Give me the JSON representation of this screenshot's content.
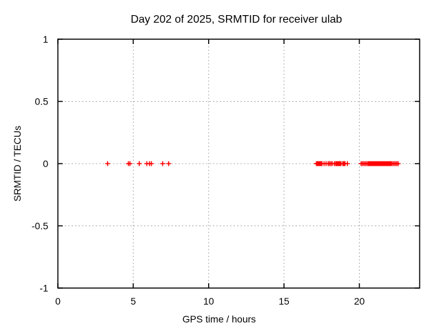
{
  "window": {
    "background": "#ffffff"
  },
  "chart_data": {
    "type": "scatter",
    "title": "Day 202 of 2025, SRMTID for receiver ulab",
    "xlabel": "GPS time / hours",
    "ylabel": "SRMTID / TECUs",
    "xlim": [
      0,
      24
    ],
    "ylim": [
      -1,
      1
    ],
    "xticks": [
      0,
      5,
      10,
      15,
      20
    ],
    "xtick_labels": [
      "0",
      "5",
      "10",
      "15",
      "20"
    ],
    "yticks": [
      1,
      0.5,
      0,
      -0.5,
      -1
    ],
    "ytick_labels": [
      "1",
      "0.5",
      "0",
      "-0.5",
      "-1"
    ],
    "grid": true,
    "legend": "none",
    "marker": "plus",
    "marker_size": 7,
    "colors": {
      "marker": "#ff0000",
      "grid": "#b0b0b0",
      "axis": "#000000",
      "text": "#000000",
      "background": "#ffffff"
    },
    "series": [
      {
        "name": "SRMTID",
        "y_const": 0,
        "x": [
          3.3,
          4.68,
          4.78,
          5.4,
          5.9,
          6.08,
          6.2,
          6.95,
          7.35,
          17.15,
          17.2,
          17.25,
          17.3,
          17.35,
          17.4,
          17.45,
          17.52,
          17.66,
          17.79,
          17.93,
          18.02,
          18.11,
          18.2,
          18.34,
          18.43,
          18.48,
          18.53,
          18.58,
          18.63,
          18.68,
          18.73,
          18.78,
          18.9,
          18.95,
          19.0,
          19.05,
          19.21,
          20.12,
          20.21,
          20.3,
          20.39,
          20.48,
          20.57,
          20.62,
          20.67,
          20.72,
          20.77,
          20.82,
          20.87,
          20.92,
          20.97,
          21.02,
          21.07,
          21.12,
          21.17,
          21.22,
          21.27,
          21.32,
          21.37,
          21.42,
          21.47,
          21.52,
          21.57,
          21.62,
          21.67,
          21.72,
          21.77,
          21.82,
          21.87,
          21.92,
          21.97,
          22.02,
          22.07,
          22.13,
          22.22,
          22.31,
          22.4,
          22.49,
          22.58
        ]
      }
    ]
  }
}
